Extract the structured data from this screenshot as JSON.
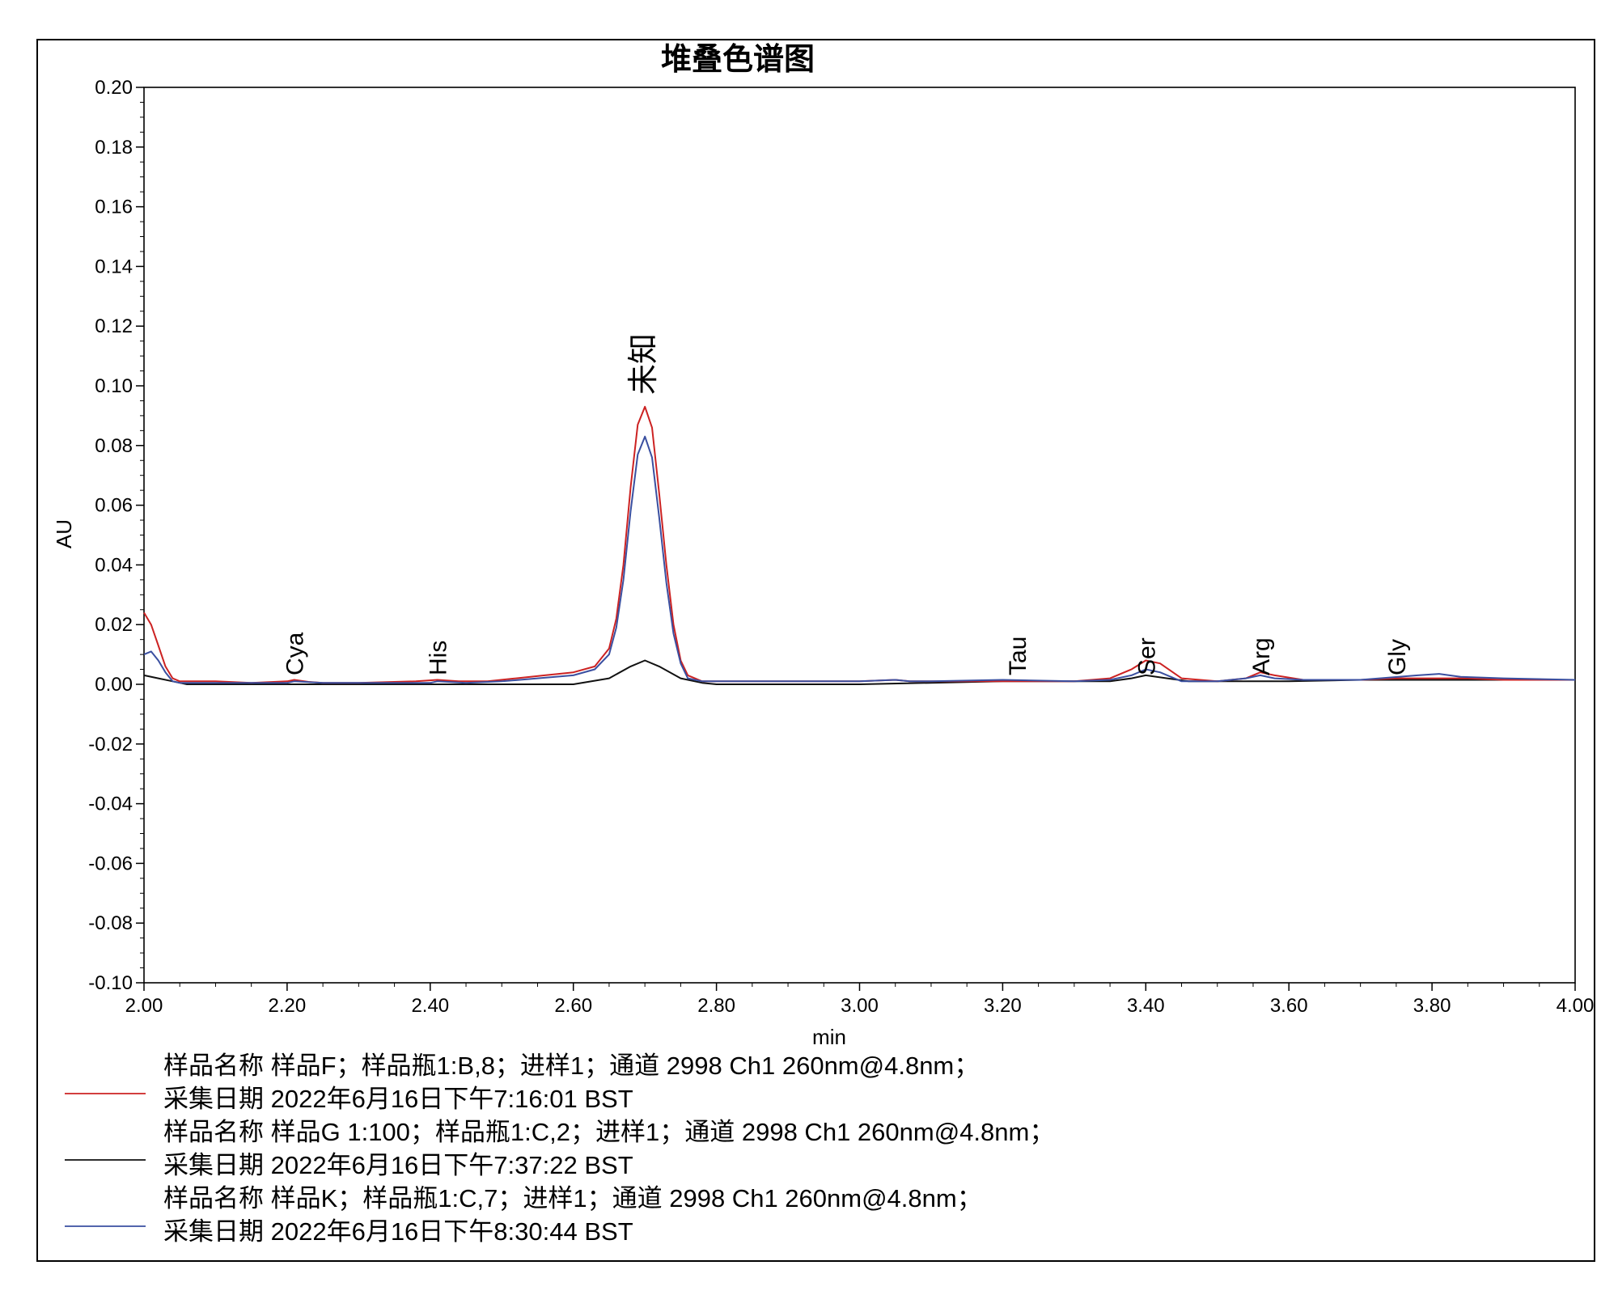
{
  "chart_data": {
    "type": "line",
    "title": "堆叠色谱图",
    "xlabel": "min",
    "ylabel": "AU",
    "xlim": [
      2.0,
      4.0
    ],
    "ylim": [
      -0.1,
      0.2
    ],
    "grid": false,
    "legend_position": "bottom",
    "x_ticks": [
      "2.00",
      "2.20",
      "2.40",
      "2.60",
      "2.80",
      "3.00",
      "3.20",
      "3.40",
      "3.60",
      "3.80",
      "4.00"
    ],
    "y_ticks": [
      "0.20",
      "0.18",
      "0.16",
      "0.14",
      "0.12",
      "0.10",
      "0.08",
      "0.06",
      "0.04",
      "0.02",
      "0.00",
      "-0.02",
      "-0.04",
      "-0.06",
      "-0.08",
      "-0.10"
    ],
    "peak_labels": [
      {
        "text": "Cya",
        "x": 2.21
      },
      {
        "text": "His",
        "x": 2.41
      },
      {
        "text": "未知",
        "x": 2.7
      },
      {
        "text": "Tau",
        "x": 3.22
      },
      {
        "text": "Ser",
        "x": 3.4
      },
      {
        "text": "Arg",
        "x": 3.56
      },
      {
        "text": "Gly",
        "x": 3.75
      }
    ],
    "series": [
      {
        "color": "#cc2222",
        "legend_line1": "样品名称 样品F；样品瓶1:B,8；进样1；通道 2998 Ch1 260nm@4.8nm；",
        "legend_line2": "采集日期 2022年6月16日下午7:16:01 BST",
        "x": [
          2.0,
          2.01,
          2.02,
          2.03,
          2.04,
          2.05,
          2.06,
          2.1,
          2.15,
          2.2,
          2.21,
          2.23,
          2.25,
          2.3,
          2.38,
          2.41,
          2.44,
          2.48,
          2.52,
          2.56,
          2.6,
          2.63,
          2.65,
          2.66,
          2.67,
          2.68,
          2.69,
          2.7,
          2.71,
          2.72,
          2.73,
          2.74,
          2.75,
          2.76,
          2.78,
          2.8,
          3.0,
          3.05,
          3.07,
          3.1,
          3.2,
          3.3,
          3.35,
          3.38,
          3.4,
          3.42,
          3.45,
          3.5,
          3.54,
          3.56,
          3.58,
          3.62,
          3.7,
          3.75,
          3.8,
          3.85,
          3.9,
          4.0
        ],
        "y": [
          0.024,
          0.02,
          0.013,
          0.006,
          0.002,
          0.001,
          0.001,
          0.001,
          0.0005,
          0.001,
          0.0015,
          0.0008,
          0.0005,
          0.0005,
          0.001,
          0.0015,
          0.001,
          0.001,
          0.002,
          0.003,
          0.004,
          0.006,
          0.012,
          0.022,
          0.04,
          0.066,
          0.087,
          0.093,
          0.086,
          0.064,
          0.04,
          0.02,
          0.008,
          0.003,
          0.001,
          0.001,
          0.001,
          0.0015,
          0.001,
          0.001,
          0.001,
          0.001,
          0.002,
          0.005,
          0.008,
          0.007,
          0.002,
          0.001,
          0.002,
          0.004,
          0.003,
          0.0015,
          0.0015,
          0.002,
          0.002,
          0.002,
          0.0015,
          0.0015
        ]
      },
      {
        "color": "#111111",
        "legend_line1": "样品名称 样品G 1:100；样品瓶1:C,2；进样1；通道 2998 Ch1 260nm@4.8nm；",
        "legend_line2": "采集日期 2022年6月16日下午7:37:22 BST",
        "x": [
          2.0,
          2.02,
          2.04,
          2.06,
          2.1,
          2.2,
          2.4,
          2.6,
          2.65,
          2.68,
          2.7,
          2.72,
          2.75,
          2.78,
          2.8,
          3.0,
          3.2,
          3.35,
          3.38,
          3.4,
          3.43,
          3.46,
          3.5,
          3.6,
          3.7,
          3.8,
          3.9,
          4.0
        ],
        "y": [
          0.003,
          0.002,
          0.001,
          0.0,
          0.0,
          0.0,
          0.0,
          0.0,
          0.002,
          0.006,
          0.008,
          0.006,
          0.002,
          0.0005,
          0.0,
          0.0,
          0.001,
          0.001,
          0.002,
          0.003,
          0.002,
          0.001,
          0.001,
          0.001,
          0.0015,
          0.0015,
          0.0015,
          0.0015
        ]
      },
      {
        "color": "#3a4fa0",
        "legend_line1": "样品名称 样品K；样品瓶1:C,7；进样1；通道 2998 Ch1 260nm@4.8nm；",
        "legend_line2": "采集日期 2022年6月16日下午8:30:44 BST",
        "x": [
          2.0,
          2.01,
          2.02,
          2.03,
          2.04,
          2.05,
          2.06,
          2.1,
          2.2,
          2.21,
          2.25,
          2.4,
          2.41,
          2.45,
          2.5,
          2.55,
          2.6,
          2.63,
          2.65,
          2.66,
          2.67,
          2.68,
          2.69,
          2.7,
          2.71,
          2.72,
          2.73,
          2.74,
          2.75,
          2.76,
          2.78,
          2.8,
          3.0,
          3.05,
          3.07,
          3.1,
          3.2,
          3.3,
          3.35,
          3.38,
          3.4,
          3.42,
          3.45,
          3.5,
          3.54,
          3.56,
          3.58,
          3.62,
          3.7,
          3.78,
          3.81,
          3.84,
          3.9,
          4.0
        ],
        "y": [
          0.01,
          0.011,
          0.008,
          0.004,
          0.001,
          0.0005,
          0.0005,
          0.0005,
          0.0005,
          0.001,
          0.0005,
          0.0005,
          0.001,
          0.0005,
          0.001,
          0.002,
          0.003,
          0.005,
          0.01,
          0.019,
          0.035,
          0.058,
          0.077,
          0.083,
          0.076,
          0.056,
          0.034,
          0.017,
          0.007,
          0.002,
          0.001,
          0.001,
          0.001,
          0.0015,
          0.001,
          0.001,
          0.0015,
          0.001,
          0.0015,
          0.003,
          0.005,
          0.004,
          0.001,
          0.001,
          0.002,
          0.003,
          0.002,
          0.0015,
          0.0015,
          0.003,
          0.0035,
          0.0025,
          0.002,
          0.0015
        ]
      }
    ]
  }
}
